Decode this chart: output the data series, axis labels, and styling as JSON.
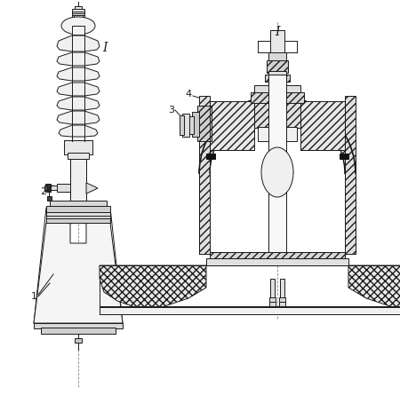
{
  "bg_color": "#ffffff",
  "line_color": "#1a1a1a",
  "label_1": "1",
  "label_2": "2",
  "label_3": "3",
  "label_4": "4",
  "label_I_left": "I",
  "label_I_right": "I",
  "figsize": [
    4.5,
    4.54
  ],
  "dpi": 100
}
